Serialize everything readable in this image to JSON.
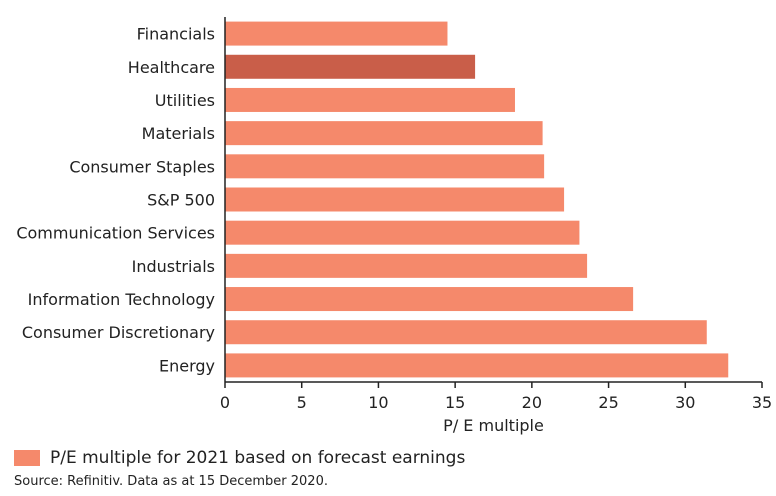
{
  "chart_data": {
    "type": "bar",
    "orientation": "horizontal",
    "categories": [
      "Financials",
      "Healthcare",
      "Utilities",
      "Materials",
      "Consumer Staples",
      "S&P 500",
      "Communication Services",
      "Industrials",
      "Information Technology",
      "Consumer Discretionary",
      "Energy"
    ],
    "values": [
      14.5,
      16.3,
      18.9,
      20.7,
      20.8,
      22.1,
      23.1,
      23.6,
      26.6,
      31.4,
      32.8
    ],
    "highlight": "Healthcare",
    "xlabel": "P/ E multiple",
    "xlim": [
      0,
      35
    ],
    "xticks": [
      0,
      5,
      10,
      15,
      20,
      25,
      30,
      35
    ],
    "grid": false,
    "legend": {
      "position": "bottom-left",
      "entries": [
        {
          "label": "P/E multiple for 2021 based on forecast earnings",
          "color": "#f5896b"
        }
      ]
    },
    "colors": {
      "bar": "#f5896b",
      "highlight": "#c95e49",
      "axis": "#222222"
    }
  },
  "source": "Source: Refinitiv. Data as at 15 December 2020."
}
